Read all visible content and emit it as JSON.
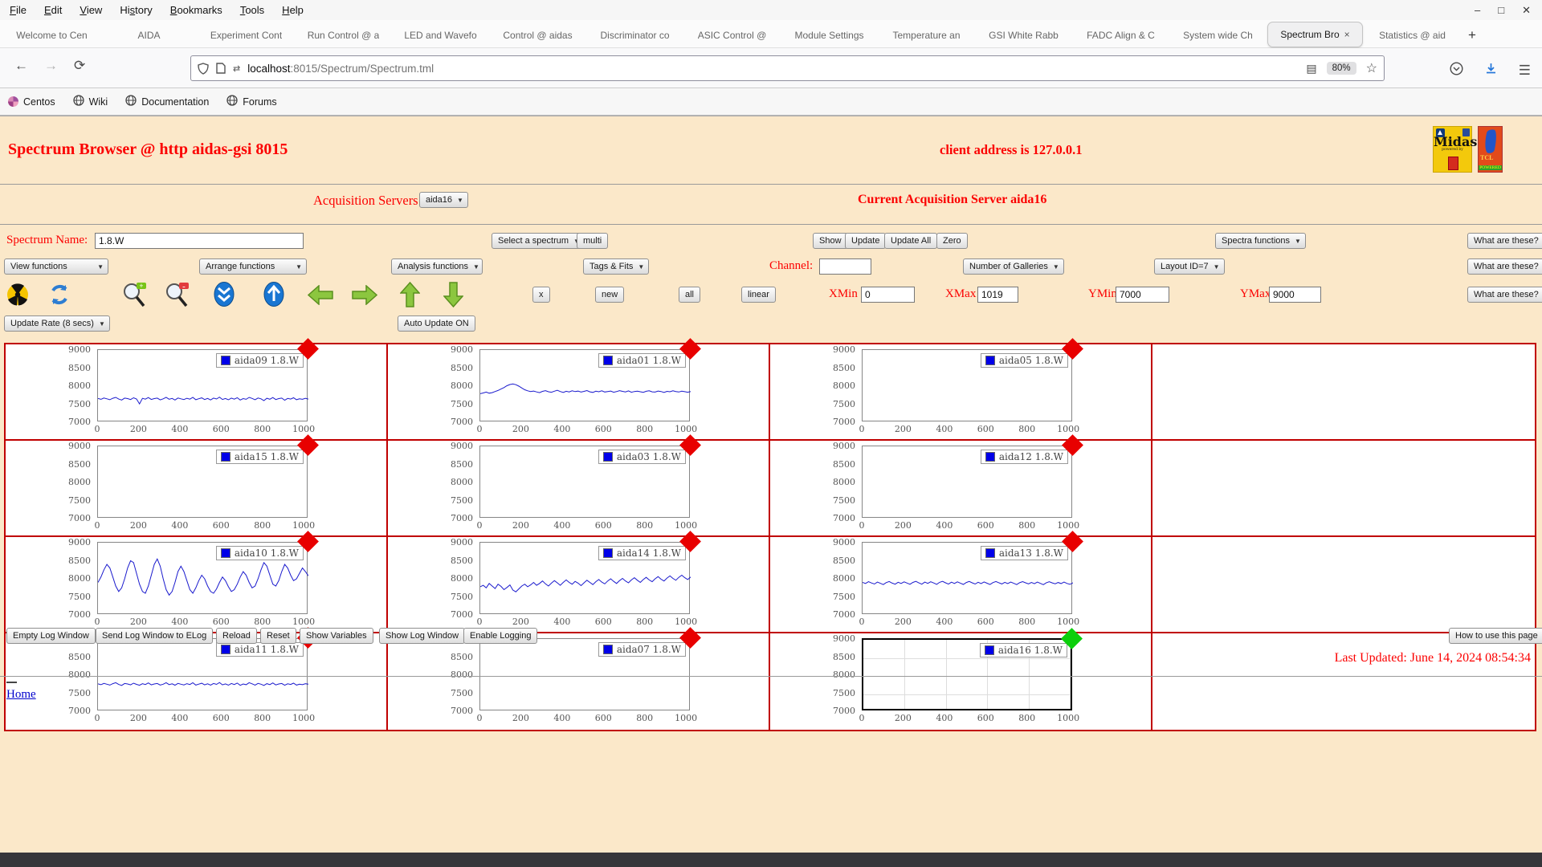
{
  "window": {
    "menu_items": [
      {
        "label": "File",
        "accel": 0
      },
      {
        "label": "Edit",
        "accel": 0
      },
      {
        "label": "View",
        "accel": 0
      },
      {
        "label": "History",
        "accel": 2
      },
      {
        "label": "Bookmarks",
        "accel": 0
      },
      {
        "label": "Tools",
        "accel": 0
      },
      {
        "label": "Help",
        "accel": 0
      }
    ],
    "controls": [
      {
        "name": "minimize-icon",
        "glyph": "–"
      },
      {
        "name": "maximize-icon",
        "glyph": "□"
      },
      {
        "name": "close-icon",
        "glyph": "✕"
      }
    ]
  },
  "tabs": {
    "items": [
      {
        "label": "Welcome to Cen",
        "active": false
      },
      {
        "label": "AIDA",
        "active": false
      },
      {
        "label": "Experiment Cont",
        "active": false
      },
      {
        "label": "Run Control @ a",
        "active": false
      },
      {
        "label": "LED and Wavefo",
        "active": false
      },
      {
        "label": "Control @ aidas",
        "active": false
      },
      {
        "label": "Discriminator co",
        "active": false
      },
      {
        "label": "ASIC Control @",
        "active": false
      },
      {
        "label": "Module Settings",
        "active": false
      },
      {
        "label": "Temperature an",
        "active": false
      },
      {
        "label": "GSI White Rabb",
        "active": false
      },
      {
        "label": "FADC Align & C",
        "active": false
      },
      {
        "label": "System wide Ch",
        "active": false
      },
      {
        "label": "Spectrum Bro",
        "active": true,
        "close": "×"
      },
      {
        "label": "Statistics @ aid",
        "active": false
      }
    ],
    "new_tab_label": "+"
  },
  "navbar": {
    "back_icon": "←",
    "forward_icon": "→",
    "reload_icon": "⟳",
    "url_host": "localhost",
    "url_path": ":8015/Spectrum/Spectrum.tml",
    "zoom_badge": "80%",
    "star_icon": "☆",
    "reader_icon": "▤",
    "pocket_icon": "◡",
    "download_icon": "↓",
    "menu_icon": "☰"
  },
  "bookmarks": [
    {
      "label": "Centos",
      "icon": "centos-icon"
    },
    {
      "label": "Wiki",
      "icon": "globe-icon"
    },
    {
      "label": "Documentation",
      "icon": "globe-icon"
    },
    {
      "label": "Forums",
      "icon": "globe-icon"
    }
  ],
  "page": {
    "title": "Spectrum Browser @ http aidas-gsi 8015",
    "client_address": "client address is 127.0.0.1",
    "acquisition": {
      "label": "Acquisition Servers",
      "selected": "aida16",
      "current": "Current Acquisition Server aida16"
    },
    "controls": {
      "spectrum_name_label": "Spectrum Name:",
      "spectrum_name_value": "1.8.W",
      "select_spectrum": "Select a spectrum",
      "multi": "multi",
      "show": "Show",
      "update": "Update",
      "update_all": "Update All",
      "zero": "Zero",
      "spectra_functions": "Spectra functions",
      "what_are_these": "What are these?",
      "view_functions": "View functions",
      "arrange_functions": "Arrange functions",
      "analysis_functions": "Analysis functions",
      "tags_fits": "Tags & Fits",
      "channel_label": "Channel:",
      "channel_value": "",
      "number_of_galleries": "Number of Galleries",
      "layout_id": "Layout ID=7",
      "x_btn": "x",
      "new_btn": "new",
      "all_btn": "all",
      "linear_btn": "linear",
      "xmin_label": "XMin",
      "xmin": "0",
      "xmax_label": "XMax",
      "xmax": "1019",
      "ymin_label": "YMin",
      "ymin": "7000",
      "ymax_label": "YMax",
      "ymax": "9000",
      "update_rate": "Update Rate (8 secs)",
      "auto_update": "Auto Update ON",
      "icons": [
        "radiation-icon",
        "refresh-icon",
        "zoom-in-icon",
        "zoom-out-icon",
        "scroll-down-icon",
        "scroll-up-icon",
        "arrow-left-icon",
        "arrow-right-icon",
        "arrow-up-icon",
        "arrow-down-icon"
      ]
    },
    "footer": {
      "buttons": [
        "Empty Log Window",
        "Send Log Window to ELog",
        "Reload",
        "Reset",
        "Show Variables",
        "Show Log Window",
        "Enable Logging"
      ],
      "help_button": "How to use this page",
      "last_updated": "Last Updated: June 14, 2024 08:54:34",
      "home": "Home"
    }
  },
  "chart_data": {
    "type": "line",
    "xlim": [
      0,
      1019
    ],
    "ylim": [
      7000,
      9000
    ],
    "xticks": [
      0,
      200,
      400,
      600,
      800,
      1000
    ],
    "yticks": [
      9000,
      8500,
      8000,
      7500,
      7000
    ],
    "grid_layout": {
      "rows": 4,
      "cols": 4
    },
    "line_color": "#1a1acd",
    "cells": [
      {
        "name": "aida09",
        "legend": "aida09 1.8.W",
        "marker": "red",
        "selected": false,
        "grid": false,
        "values": [
          7660,
          7635,
          7672,
          7648,
          7625,
          7665,
          7690,
          7642,
          7615,
          7668,
          7655,
          7630,
          7678,
          7645,
          7508,
          7662,
          7640,
          7685,
          7632,
          7655,
          7670,
          7620,
          7648,
          7692,
          7638,
          7660,
          7615,
          7672,
          7650,
          7628,
          7665,
          7641,
          7688,
          7625,
          7652,
          7676,
          7630,
          7660,
          7618,
          7670,
          7645,
          7695,
          7632,
          7658,
          7622,
          7668,
          7640,
          7680,
          7615,
          7655,
          7635,
          7690,
          7660,
          7625,
          7672,
          7648,
          7600,
          7665,
          7638,
          7685,
          7628,
          7655,
          7670,
          7612,
          7660,
          7642,
          7678,
          7625,
          7650,
          7635,
          7662,
          7640
        ]
      },
      {
        "name": "aida01",
        "legend": "aida01 1.8.W",
        "marker": "red",
        "selected": false,
        "grid": false,
        "values": [
          7790,
          7810,
          7835,
          7805,
          7820,
          7850,
          7880,
          7920,
          7960,
          8010,
          8045,
          8060,
          8040,
          8000,
          7950,
          7900,
          7870,
          7850,
          7865,
          7840,
          7820,
          7855,
          7875,
          7845,
          7830,
          7860,
          7885,
          7850,
          7825,
          7858,
          7840,
          7872,
          7848,
          7862,
          7835,
          7855,
          7878,
          7842,
          7826,
          7860,
          7845,
          7870,
          7838,
          7852,
          7865,
          7830,
          7848,
          7875,
          7855,
          7840,
          7868,
          7832,
          7850,
          7862,
          7845,
          7828,
          7858,
          7870,
          7842,
          7836,
          7865,
          7850,
          7825,
          7856,
          7844,
          7870,
          7852,
          7838,
          7860,
          7846,
          7832,
          7850
        ]
      },
      {
        "name": "aida05",
        "legend": "aida05 1.8.W",
        "marker": "red",
        "selected": false,
        "grid": false,
        "values": []
      },
      null,
      {
        "name": "aida15",
        "legend": "aida15 1.8.W",
        "marker": "red",
        "selected": false,
        "grid": false,
        "values": []
      },
      {
        "name": "aida03",
        "legend": "aida03 1.8.W",
        "marker": "red",
        "selected": false,
        "grid": false,
        "values": []
      },
      {
        "name": "aida12",
        "legend": "aida12 1.8.W",
        "marker": "red",
        "selected": false,
        "grid": false,
        "values": []
      },
      null,
      {
        "name": "aida10",
        "legend": "aida10 1.8.W",
        "marker": "red",
        "selected": false,
        "grid": false,
        "values": [
          7900,
          8050,
          8250,
          8400,
          8300,
          8050,
          7800,
          7650,
          7750,
          8000,
          8300,
          8500,
          8450,
          8150,
          7850,
          7650,
          7600,
          7800,
          8100,
          8400,
          8550,
          8350,
          8000,
          7700,
          7550,
          7650,
          7900,
          8200,
          8350,
          8200,
          7950,
          7700,
          7600,
          7750,
          7950,
          8100,
          8000,
          7800,
          7650,
          7600,
          7720,
          7900,
          8050,
          7950,
          7780,
          7650,
          7700,
          7850,
          8050,
          8200,
          8100,
          7900,
          7750,
          7800,
          8000,
          8250,
          8450,
          8350,
          8100,
          7850,
          7800,
          7950,
          8200,
          8400,
          8300,
          8100,
          7950,
          8000,
          8150,
          8300,
          8200,
          8080
        ]
      },
      {
        "name": "aida14",
        "legend": "aida14 1.8.W",
        "marker": "red",
        "selected": false,
        "grid": false,
        "values": [
          7780,
          7820,
          7750,
          7870,
          7800,
          7730,
          7850,
          7790,
          7700,
          7760,
          7830,
          7690,
          7640,
          7720,
          7800,
          7850,
          7780,
          7830,
          7900,
          7820,
          7870,
          7940,
          7860,
          7800,
          7880,
          7950,
          7890,
          7820,
          7900,
          7970,
          7900,
          7850,
          7930,
          7880,
          7810,
          7890,
          7960,
          7900,
          7840,
          7920,
          7980,
          7910,
          7860,
          7940,
          8000,
          7930,
          7870,
          7950,
          8010,
          7940,
          7890,
          7970,
          8030,
          7960,
          7900,
          7980,
          8040,
          7970,
          7920,
          8000,
          8060,
          7990,
          7940,
          8020,
          8080,
          8010,
          7960,
          8040,
          8100,
          8030,
          7980,
          8050
        ]
      },
      {
        "name": "aida13",
        "legend": "aida13 1.8.W",
        "marker": "red",
        "selected": false,
        "grid": false,
        "values": [
          7900,
          7870,
          7920,
          7885,
          7855,
          7910,
          7875,
          7840,
          7895,
          7925,
          7880,
          7850,
          7905,
          7870,
          7915,
          7882,
          7848,
          7900,
          7928,
          7886,
          7852,
          7908,
          7874,
          7918,
          7884,
          7846,
          7902,
          7930,
          7888,
          7854,
          7906,
          7872,
          7916,
          7880,
          7844,
          7898,
          7926,
          7890,
          7856,
          7904,
          7868,
          7914,
          7878,
          7842,
          7896,
          7924,
          7892,
          7858,
          7902,
          7866,
          7912,
          7876,
          7840,
          7894,
          7922,
          7888,
          7860,
          7900,
          7864,
          7910,
          7874,
          7838,
          7892,
          7920,
          7886,
          7862,
          7898,
          7868,
          7908,
          7872,
          7846,
          7890
        ]
      },
      null,
      {
        "name": "aida11",
        "legend": "aida11 1.8.W",
        "marker": "red",
        "selected": false,
        "grid": false,
        "values": [
          7760,
          7735,
          7772,
          7748,
          7725,
          7765,
          7790,
          7742,
          7715,
          7768,
          7755,
          7730,
          7778,
          7745,
          7720,
          7762,
          7740,
          7785,
          7732,
          7755,
          7770,
          7726,
          7748,
          7792,
          7738,
          7760,
          7722,
          7772,
          7750,
          7728,
          7765,
          7741,
          7788,
          7725,
          7752,
          7776,
          7730,
          7760,
          7724,
          7770,
          7745,
          7795,
          7732,
          7758,
          7722,
          7768,
          7740,
          7780,
          7718,
          7755,
          7735,
          7790,
          7760,
          7725,
          7772,
          7748,
          7716,
          7765,
          7738,
          7785,
          7728,
          7755,
          7770,
          7720,
          7760,
          7742,
          7778,
          7725,
          7750,
          7735,
          7762,
          7748
        ]
      },
      {
        "name": "aida07",
        "legend": "aida07 1.8.W",
        "marker": "red",
        "selected": false,
        "grid": false,
        "values": []
      },
      {
        "name": "aida16",
        "legend": "aida16 1.8.W",
        "marker": "green",
        "selected": true,
        "grid": true,
        "values": []
      },
      null
    ]
  }
}
